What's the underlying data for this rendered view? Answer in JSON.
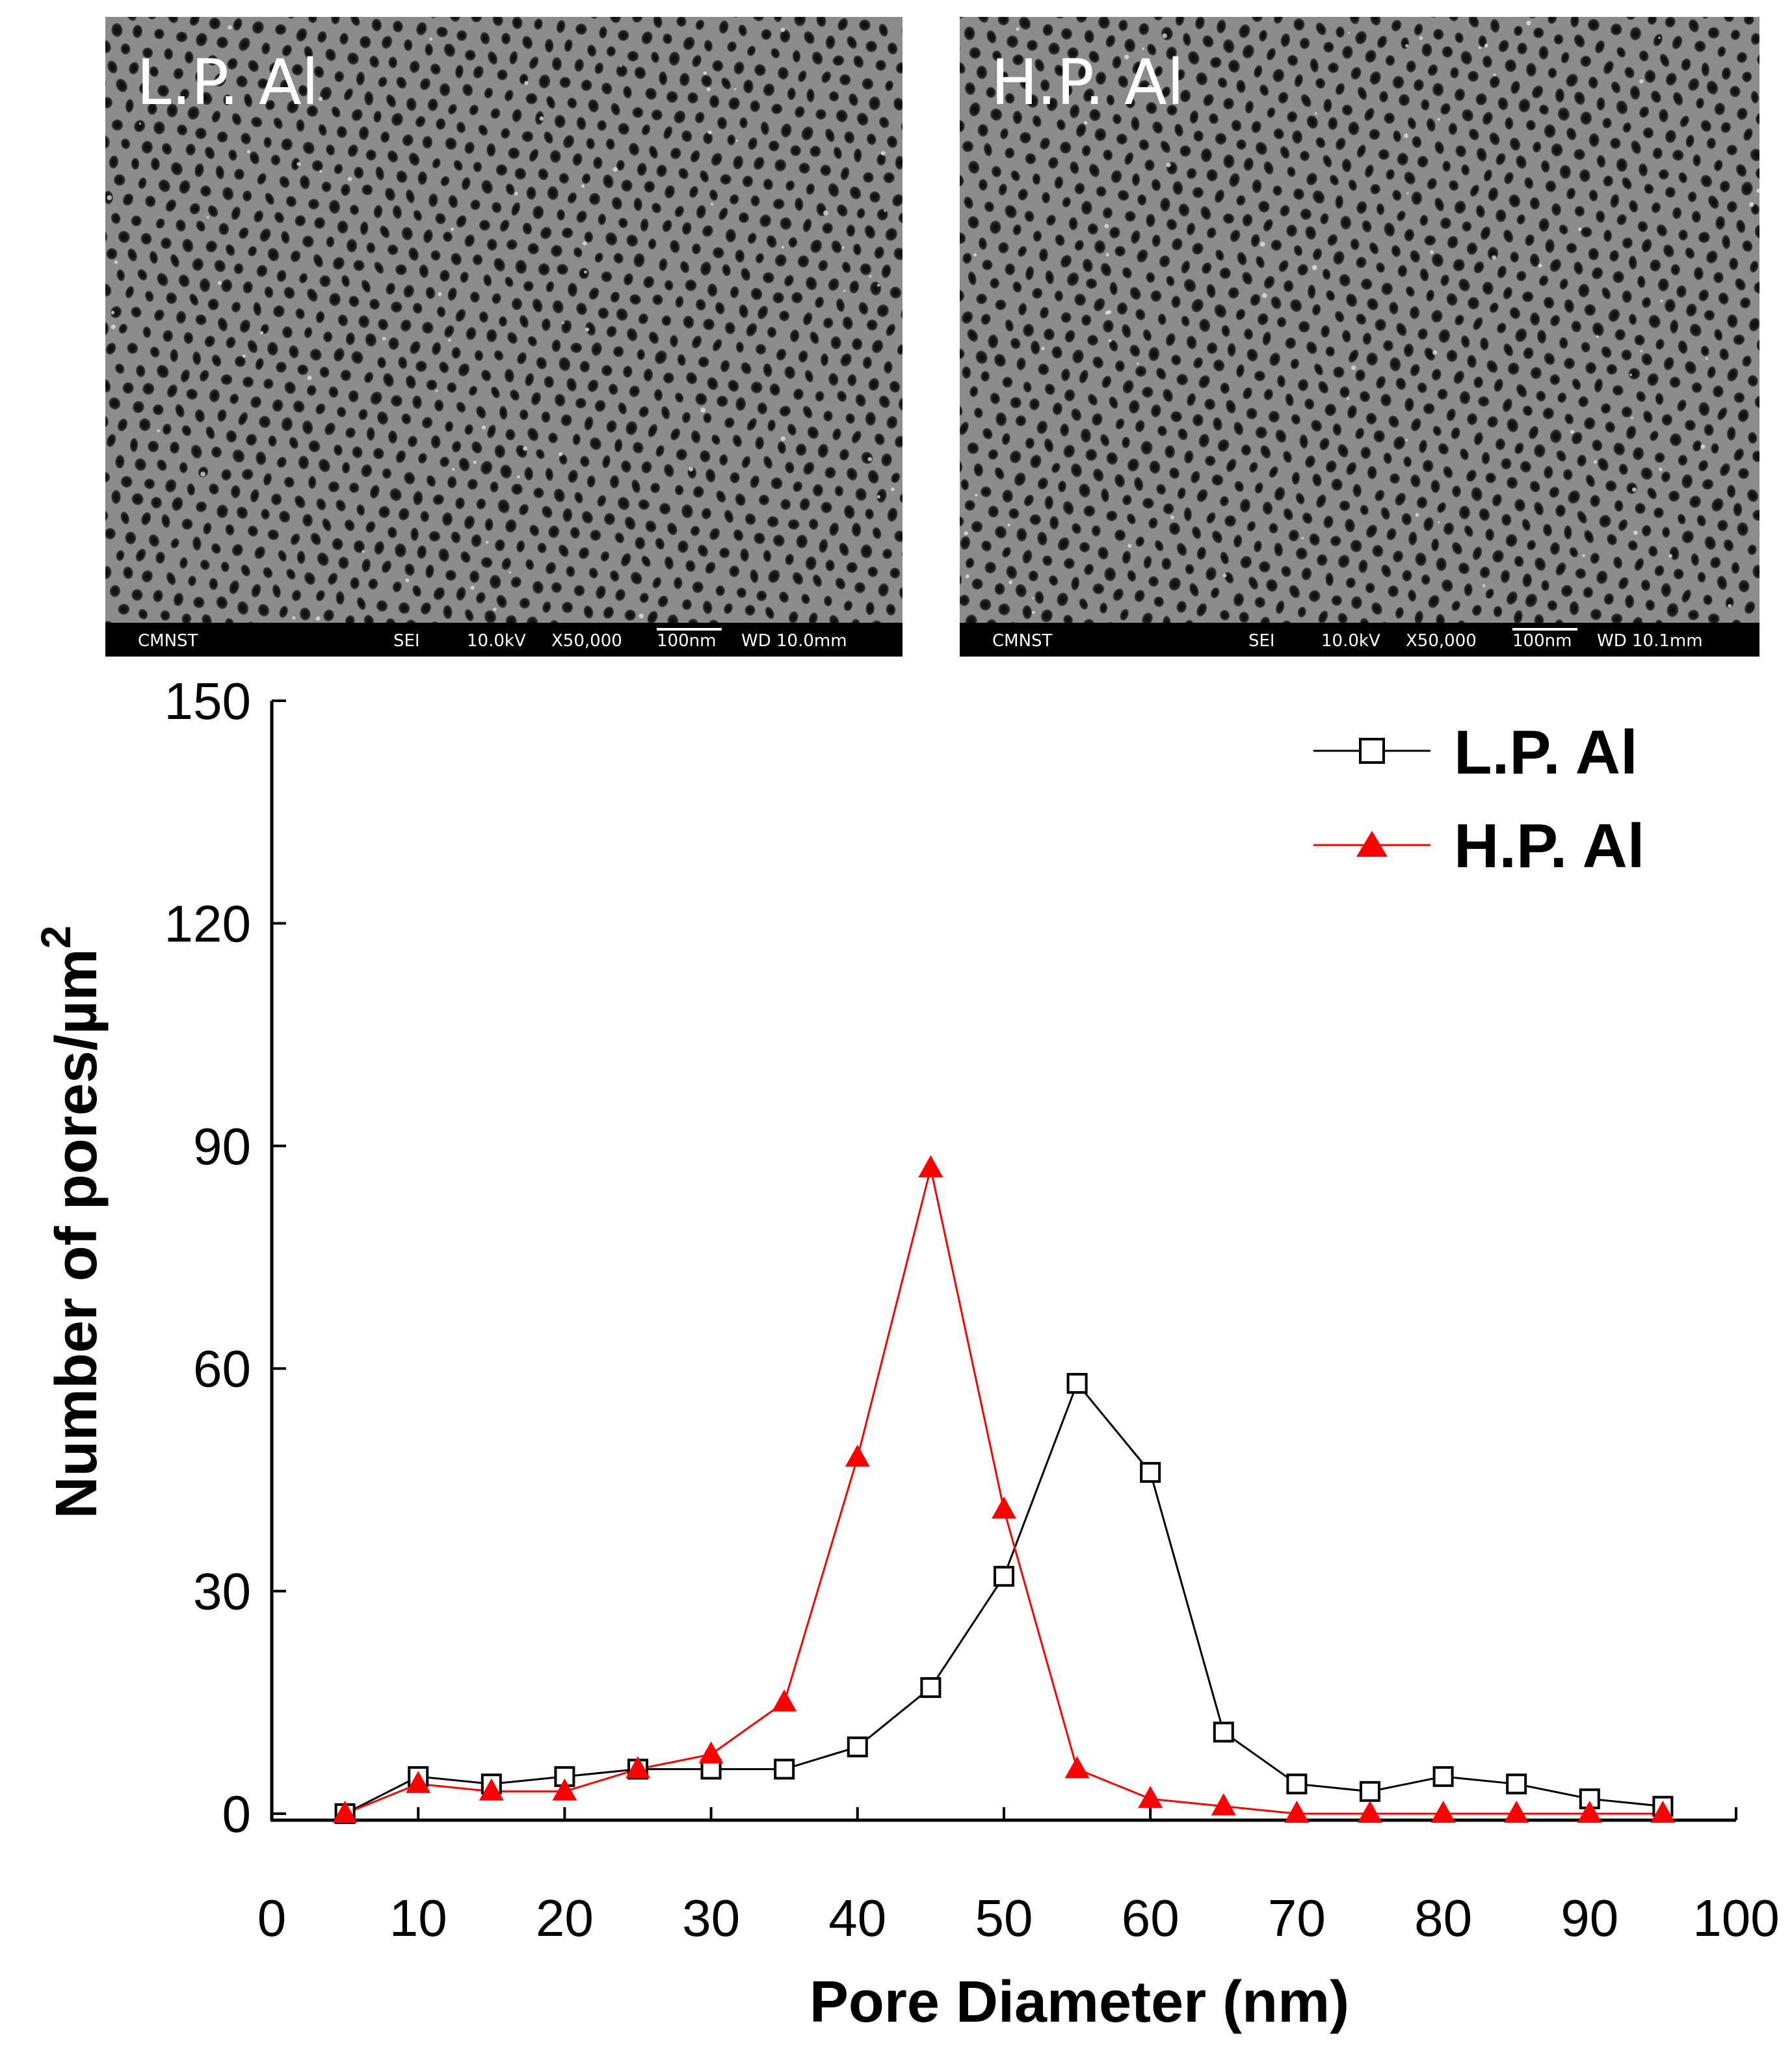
{
  "colors": {
    "sem_background": "#8c8c8c",
    "sem_pore": "#151515",
    "sem_bar": "#000000",
    "sem_bar_text": "#ffffff",
    "series_lp": "#000000",
    "series_hp": "#ff0000"
  },
  "panels": [
    {
      "label": "L.P. Al",
      "info": [
        "CMNST",
        "SEI",
        "10.0kV",
        "X50,000",
        "100nm",
        "WD 10.0mm"
      ]
    },
    {
      "label": "H.P. Al",
      "info": [
        "CMNST",
        "SEI",
        "10.0kV",
        "X50,000",
        "100nm",
        "WD 10.1mm"
      ]
    }
  ],
  "chart_data": {
    "type": "line",
    "title": "",
    "xlabel": "Pore Diameter (nm)",
    "ylabel": "Number of pores/µm",
    "ylabel_superscript": "2",
    "xlim": [
      0,
      100
    ],
    "ylim": [
      0,
      150
    ],
    "xticks": [
      0,
      10,
      20,
      30,
      40,
      50,
      60,
      70,
      80,
      90,
      100
    ],
    "yticks": [
      0,
      30,
      60,
      90,
      120,
      150
    ],
    "x": [
      5,
      10,
      15,
      20,
      25,
      30,
      35,
      40,
      45,
      50,
      55,
      60,
      65,
      70,
      75,
      80,
      85,
      90,
      95
    ],
    "legend_position": "top-right",
    "series": [
      {
        "name": "L.P. Al",
        "marker": "open-square",
        "color": "#000000",
        "values": [
          0,
          5,
          4,
          5,
          6,
          6,
          6,
          9,
          17,
          32,
          58,
          46,
          11,
          4,
          3,
          5,
          4,
          2,
          1
        ]
      },
      {
        "name": "H.P. Al",
        "marker": "filled-triangle",
        "color": "#ff0000",
        "values": [
          0,
          4,
          3,
          3,
          6,
          8,
          15,
          48,
          87,
          41,
          6,
          2,
          1,
          0,
          0,
          0,
          0,
          0,
          0
        ]
      }
    ]
  }
}
